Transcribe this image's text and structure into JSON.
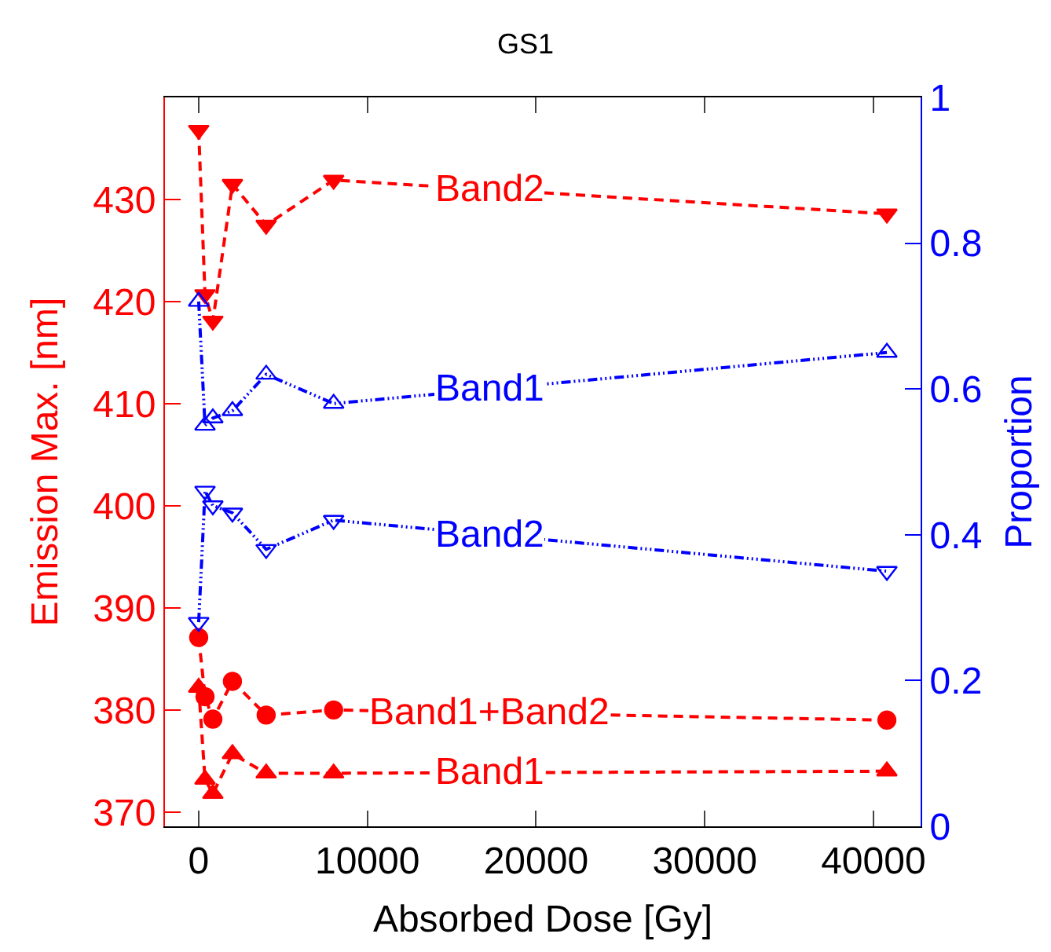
{
  "chart_data": {
    "type": "line",
    "title": "GS1",
    "xlabel": "Absorbed Dose [Gy]",
    "ylabel": "Emission Max. [nm]",
    "y2label": "Proportion",
    "x": [
      0,
      375,
      840,
      2000,
      4000,
      8000,
      40800
    ],
    "series": [
      {
        "name": "Band2",
        "color": "#ff0000",
        "marker": "triangle-down",
        "line_style": "dashed",
        "values": [
          436.8,
          420.7,
          418.1,
          431.5,
          427.5,
          431.9,
          428.6
        ]
      },
      {
        "name": "Band1",
        "color": "#0000ff",
        "marker": "triangle-open",
        "line_style": "dotted",
        "axis": "y2",
        "values": [
          0.72,
          0.55,
          0.56,
          0.57,
          0.62,
          0.58,
          0.65
        ]
      },
      {
        "name": "Band2",
        "color": "#0000ff",
        "marker": "triangle-down-open",
        "line_style": "dotted",
        "axis": "y2",
        "values": [
          0.28,
          0.46,
          0.44,
          0.43,
          0.38,
          0.42,
          0.35
        ]
      },
      {
        "name": "Band1+Band2",
        "color": "#ff0000",
        "marker": "circle",
        "line_style": "dashed",
        "values": [
          387.1,
          381.3,
          379.1,
          382.8,
          379.5,
          380.0,
          379.0
        ]
      },
      {
        "name": "Band1",
        "color": "#ff0000",
        "marker": "triangle",
        "line_style": "dashed",
        "values": [
          382.2,
          373.2,
          371.8,
          375.7,
          373.8,
          373.8,
          374.0
        ]
      }
    ],
    "xlim": [
      -2000,
      42800
    ],
    "xticks": [
      0,
      10000,
      20000,
      30000,
      40000
    ],
    "ylim": [
      368.6,
      440
    ],
    "yticks": [
      370,
      380,
      390,
      400,
      410,
      420,
      430
    ],
    "y2lim": [
      0,
      1
    ],
    "y2ticks": [
      0,
      0.2,
      0.4,
      0.6,
      0.8,
      1
    ]
  }
}
